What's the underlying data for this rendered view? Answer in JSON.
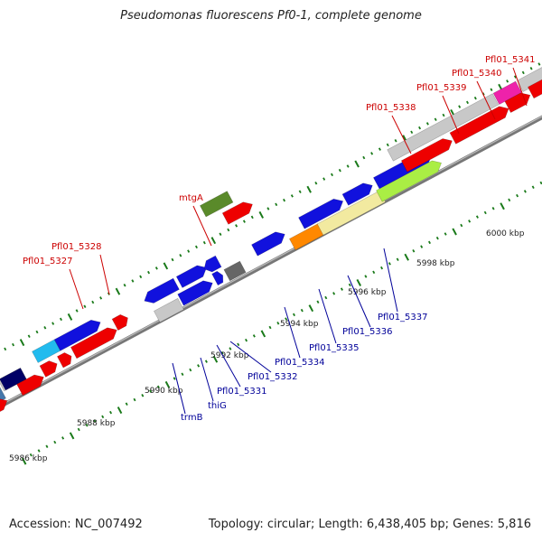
{
  "title": "Pseudomonas fluorescens Pf0-1, complete genome",
  "footer": {
    "accession": "Accession: NC_007492",
    "summary": "Topology: circular; Length: 6,438,405 bp; Genes: 5,816"
  },
  "scale_labels": [
    "5986 kbp",
    "5988 kbp",
    "5990 kbp",
    "5992 kbp",
    "5994 kbp",
    "5996 kbp",
    "5998 kbp",
    "6000 kbp"
  ],
  "gene_labels": {
    "red": [
      "Pfl01_5341",
      "Pfl01_5340",
      "Pfl01_5339",
      "Pfl01_5338",
      "mtgA",
      "Pfl01_5328",
      "Pfl01_5327"
    ],
    "blue": [
      "Pfl01_5337",
      "Pfl01_5336",
      "Pfl01_5335",
      "Pfl01_5334",
      "Pfl01_5332",
      "Pfl01_5331",
      "thiG",
      "trmB"
    ]
  },
  "colors": {
    "label_red": "#cc0000",
    "label_blue": "#000099",
    "tick_green": "#1a7a1a",
    "backbone": "#777777",
    "gene_red": "#ee0000",
    "gene_blue": "#1111dd",
    "gene_gray": "#c8c8c8",
    "gene_olive": "#5a8a2a",
    "gene_orange": "#ff8800",
    "gene_pale": "#f2eaa0",
    "gene_lime": "#aaee44",
    "gene_magenta": "#ee22aa",
    "gene_cyan": "#22bbee",
    "gene_steel": "#4477aa",
    "gene_navy": "#000066",
    "gene_darkgray": "#666666"
  }
}
